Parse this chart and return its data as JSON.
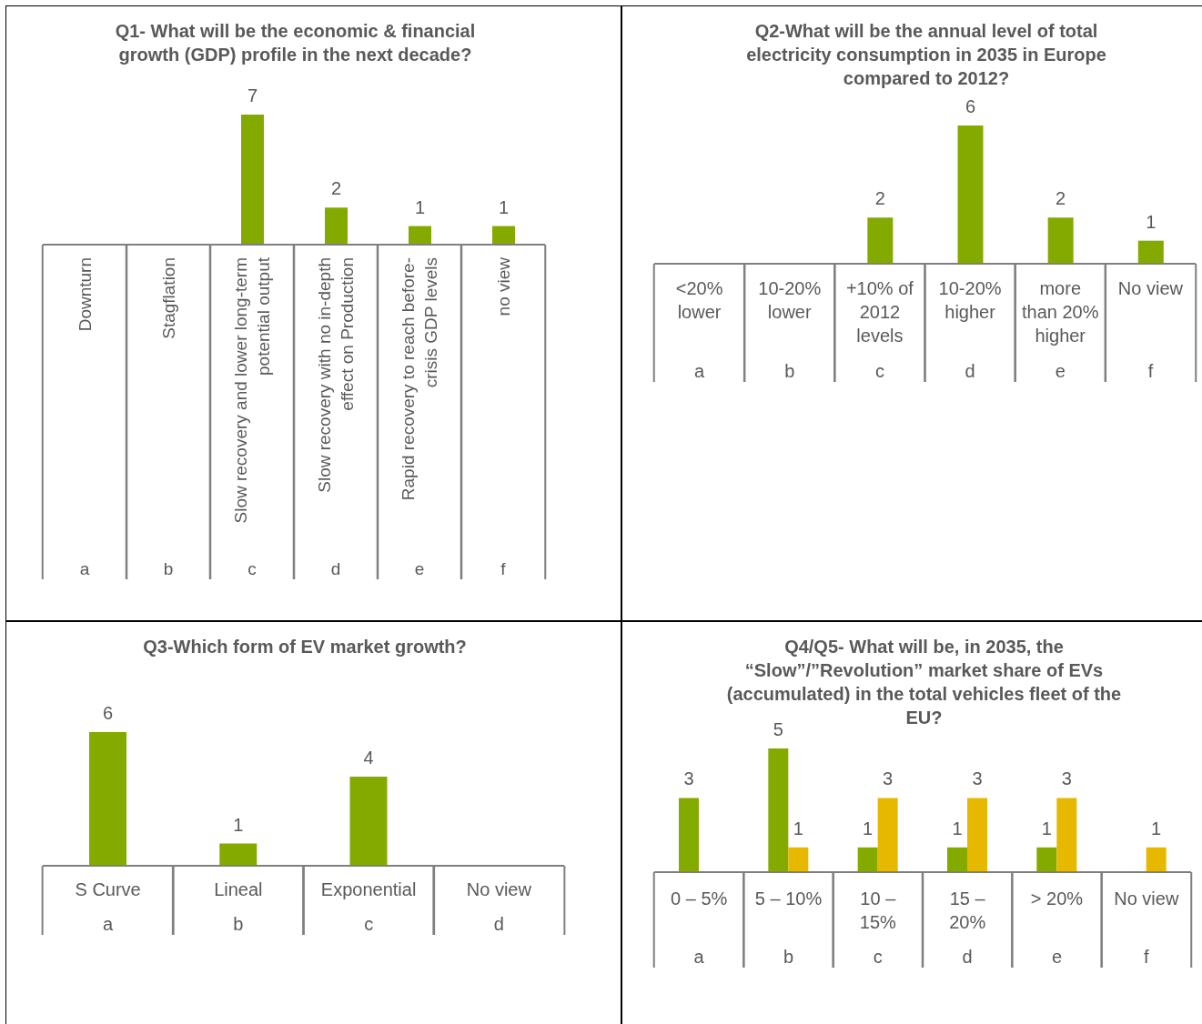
{
  "chart_data": [
    {
      "type": "bar",
      "title": "Q1- What will be the economic & financial growth (GDP) profile in the next decade?",
      "categories": [
        "Downturn",
        "Stagflation",
        "Slow recovery and lower long-term potential output",
        "Slow recovery with no in-depth effect on Production",
        "Rapid recovery to reach before-crisis GDP levels",
        "no view"
      ],
      "values": [
        0,
        0,
        7,
        2,
        1,
        1
      ],
      "value_labels": [
        null,
        null,
        "7",
        "2",
        "1",
        "1"
      ],
      "color": "#84aa00",
      "annotations": [
        "a",
        "b",
        "c",
        "d",
        "e",
        "f"
      ],
      "grid": false,
      "legend": false
    },
    {
      "type": "bar",
      "title": "Q2-What will be the annual level of total electricity consumption in 2035 in Europe compared to 2012?",
      "categories": [
        "<20% lower",
        "10-20% lower",
        "+10% of 2012 levels",
        "10-20% higher",
        "more than 20% higher",
        "No view"
      ],
      "values": [
        0,
        0,
        2,
        6,
        2,
        1
      ],
      "value_labels": [
        null,
        null,
        "2",
        "6",
        "2",
        "1"
      ],
      "color": "#84aa00",
      "annotations": [
        "a",
        "b",
        "c",
        "d",
        "e",
        "f"
      ],
      "grid": false,
      "legend": false
    },
    {
      "type": "bar",
      "title": "Q3-Which form of EV market growth?",
      "categories": [
        "S Curve",
        "Lineal",
        "Exponential",
        "No view"
      ],
      "values": [
        6,
        1,
        4,
        0
      ],
      "value_labels": [
        "6",
        "1",
        "4",
        null
      ],
      "color": "#84aa00",
      "annotations": [
        "a",
        "b",
        "c",
        "d"
      ],
      "grid": false,
      "legend": false
    },
    {
      "type": "bar",
      "title": "Q4/Q5- What will be, in 2035, the “Slow”/”Revolution” market share of EVs (accumulated) in the total vehicles fleet of the EU?",
      "categories": [
        "0 – 5%",
        "5 – 10%",
        "10 – 15%",
        "15 – 20%",
        "> 20%",
        "No view"
      ],
      "series": [
        {
          "color": "#84aa00",
          "values": [
            3,
            5,
            1,
            1,
            1,
            0
          ],
          "value_labels": [
            "3",
            "5",
            "1",
            "1",
            "1",
            null
          ]
        },
        {
          "color": "#e6b800",
          "values": [
            0,
            1,
            3,
            3,
            3,
            1
          ],
          "value_labels": [
            null,
            "1",
            "3",
            "3",
            "3",
            "1"
          ]
        }
      ],
      "annotations": [
        "a",
        "b",
        "c",
        "d",
        "e",
        "f"
      ],
      "grid": false,
      "legend": false
    }
  ]
}
